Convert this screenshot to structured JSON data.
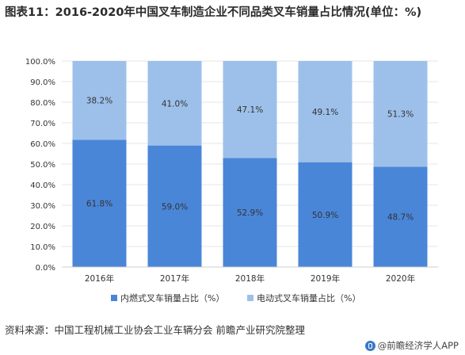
{
  "header": {
    "title": "图表11：2016-2020年中国叉车制造企业不同品类叉车销量占比情况(单位：%)"
  },
  "chart_data": {
    "type": "bar",
    "stacked": true,
    "categories": [
      "2016年",
      "2017年",
      "2018年",
      "2019年",
      "2020年"
    ],
    "series": [
      {
        "name": "内燃式叉车销量占比（%）",
        "values": [
          61.8,
          59.0,
          52.9,
          50.9,
          48.7
        ],
        "labels": [
          "61.8%",
          "59.0%",
          "52.9%",
          "50.9%",
          "48.7%"
        ],
        "color": "#4a86d8"
      },
      {
        "name": "电动式叉车销量占比（%）",
        "values": [
          38.2,
          41.0,
          47.1,
          49.1,
          51.3
        ],
        "labels": [
          "38.2%",
          "41.0%",
          "47.1%",
          "49.1%",
          "51.3%"
        ],
        "color": "#9dc0ea"
      }
    ],
    "ylim": [
      0,
      100
    ],
    "yticks": [
      0,
      10,
      20,
      30,
      40,
      50,
      60,
      70,
      80,
      90,
      100
    ],
    "ytick_labels": [
      "0.0%",
      "10.0%",
      "20.0%",
      "30.0%",
      "40.0%",
      "50.0%",
      "60.0%",
      "70.0%",
      "80.0%",
      "90.0%",
      "100.0%"
    ],
    "grid": true,
    "legend_position": "bottom"
  },
  "footer": {
    "source": "资料来源：中国工程机械工业协会工业车辆分会 前瞻产业研究院整理",
    "credit": "@前瞻经济学人APP"
  },
  "colors": {
    "axis": "#cfcfcf",
    "grid": "#e6e6e6",
    "label_text": "#333333"
  }
}
